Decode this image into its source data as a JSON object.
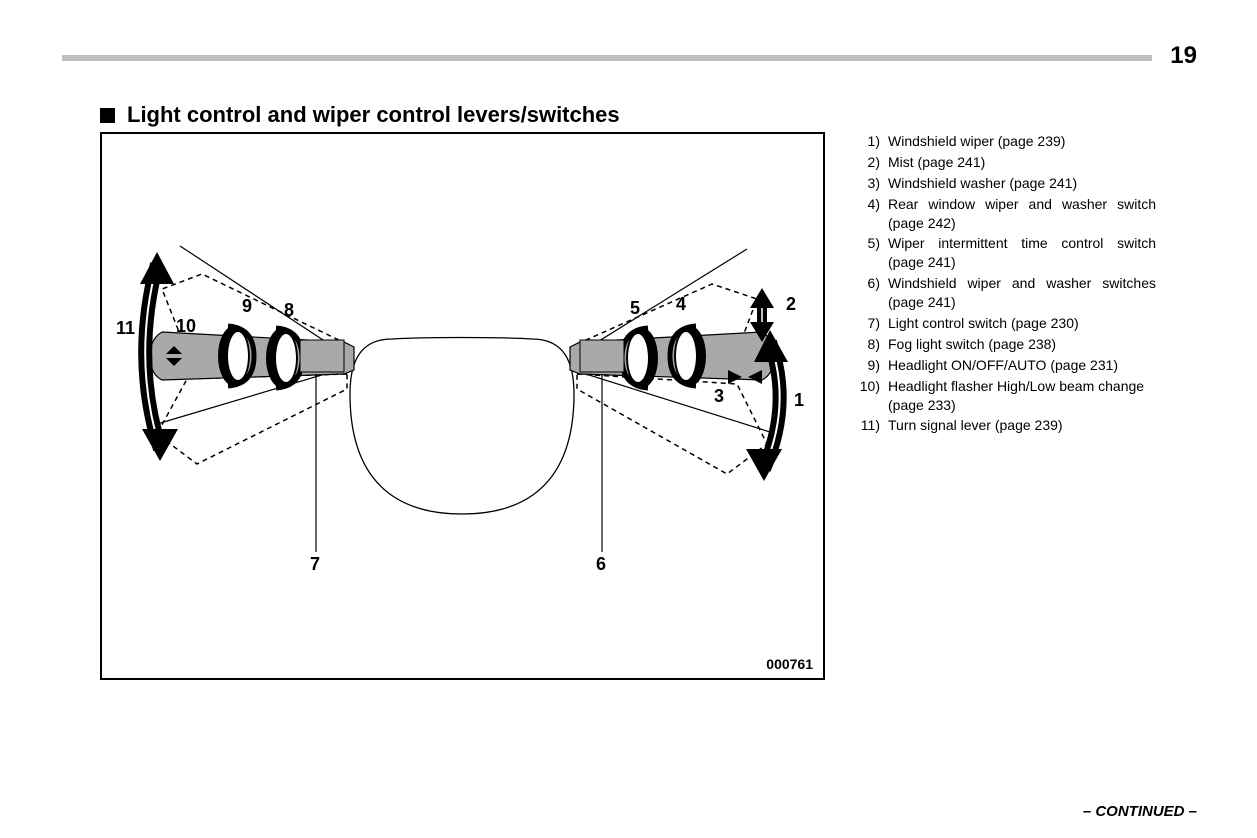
{
  "page": {
    "number": "19",
    "continued": "– CONTINUED –",
    "header_rule_color": "#bfbfbf"
  },
  "section": {
    "title": "Light control and wiper control levers/switches"
  },
  "figure": {
    "id": "000761",
    "border_color": "#000000",
    "lever_fill": "#a9a9a9",
    "ring_fill": "#000000",
    "ring_inner": "#ffffff",
    "dashed_color": "#000000",
    "callouts": {
      "n1": "1",
      "n2": "2",
      "n3": "3",
      "n4": "4",
      "n5": "5",
      "n6": "6",
      "n7": "7",
      "n8": "8",
      "n9": "9",
      "n10": "10",
      "n11": "11"
    }
  },
  "legend": [
    {
      "num": "1)",
      "lines": [
        "Windshield wiper (page 239)"
      ]
    },
    {
      "num": "2)",
      "lines": [
        "Mist (page 241)"
      ]
    },
    {
      "num": "3)",
      "lines": [
        "Windshield washer (page 241)"
      ]
    },
    {
      "num": "4)",
      "lines_just": [
        "Rear window wiper and washer switch"
      ],
      "lines": [
        "(page 242)"
      ]
    },
    {
      "num": "5)",
      "lines_just": [
        "Wiper intermittent time control switch"
      ],
      "lines": [
        "(page 241)"
      ]
    },
    {
      "num": "6)",
      "lines_just": [
        "Windshield wiper and washer switches"
      ],
      "lines": [
        "(page 241)"
      ]
    },
    {
      "num": "7)",
      "lines": [
        "Light control switch (page 230)"
      ]
    },
    {
      "num": "8)",
      "lines": [
        "Fog light switch (page 238)"
      ]
    },
    {
      "num": "9)",
      "lines": [
        "Headlight ON/OFF/AUTO (page 231)"
      ]
    },
    {
      "num": "10)",
      "lines": [
        "Headlight flasher High/Low beam change",
        "(page 233)"
      ]
    },
    {
      "num": "11)",
      "lines": [
        "Turn signal lever (page 239)"
      ]
    }
  ]
}
